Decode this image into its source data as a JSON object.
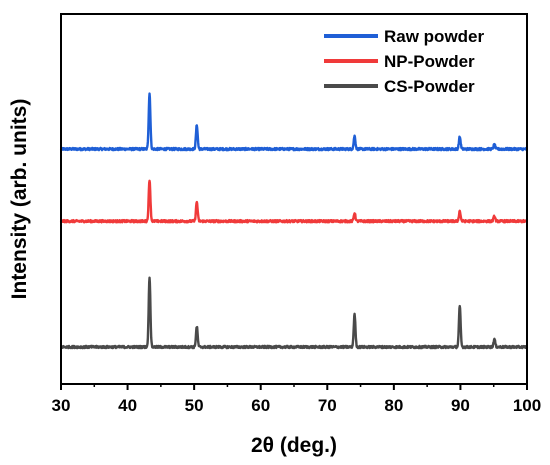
{
  "chart_data": {
    "type": "line",
    "title": "",
    "xlabel": "2θ (deg.)",
    "ylabel": "Intensity (arb. units)",
    "xlim": [
      30,
      100
    ],
    "xticks": [
      30,
      40,
      50,
      60,
      70,
      80,
      90,
      100
    ],
    "y_ticks_labeled": false,
    "grid": false,
    "legend_position": "top-right",
    "peak_width_deg": 0.18,
    "series": [
      {
        "name": "Raw powder",
        "color": "#1f5fd6",
        "baseline": 0.635,
        "peaks": [
          {
            "x": 43.3,
            "h": 0.15
          },
          {
            "x": 50.4,
            "h": 0.065
          },
          {
            "x": 74.1,
            "h": 0.035
          },
          {
            "x": 89.9,
            "h": 0.033
          },
          {
            "x": 95.1,
            "h": 0.012
          }
        ]
      },
      {
        "name": "NP-Powder",
        "color": "#f03a3a",
        "baseline": 0.44,
        "peaks": [
          {
            "x": 43.3,
            "h": 0.112
          },
          {
            "x": 50.4,
            "h": 0.052
          },
          {
            "x": 74.1,
            "h": 0.022
          },
          {
            "x": 89.9,
            "h": 0.027
          },
          {
            "x": 95.1,
            "h": 0.013
          }
        ]
      },
      {
        "name": "CS-Powder",
        "color": "#4a4a4a",
        "baseline": 0.1,
        "peaks": [
          {
            "x": 43.3,
            "h": 0.19
          },
          {
            "x": 50.4,
            "h": 0.055
          },
          {
            "x": 74.1,
            "h": 0.088
          },
          {
            "x": 89.9,
            "h": 0.11
          },
          {
            "x": 95.1,
            "h": 0.021
          }
        ]
      }
    ]
  }
}
